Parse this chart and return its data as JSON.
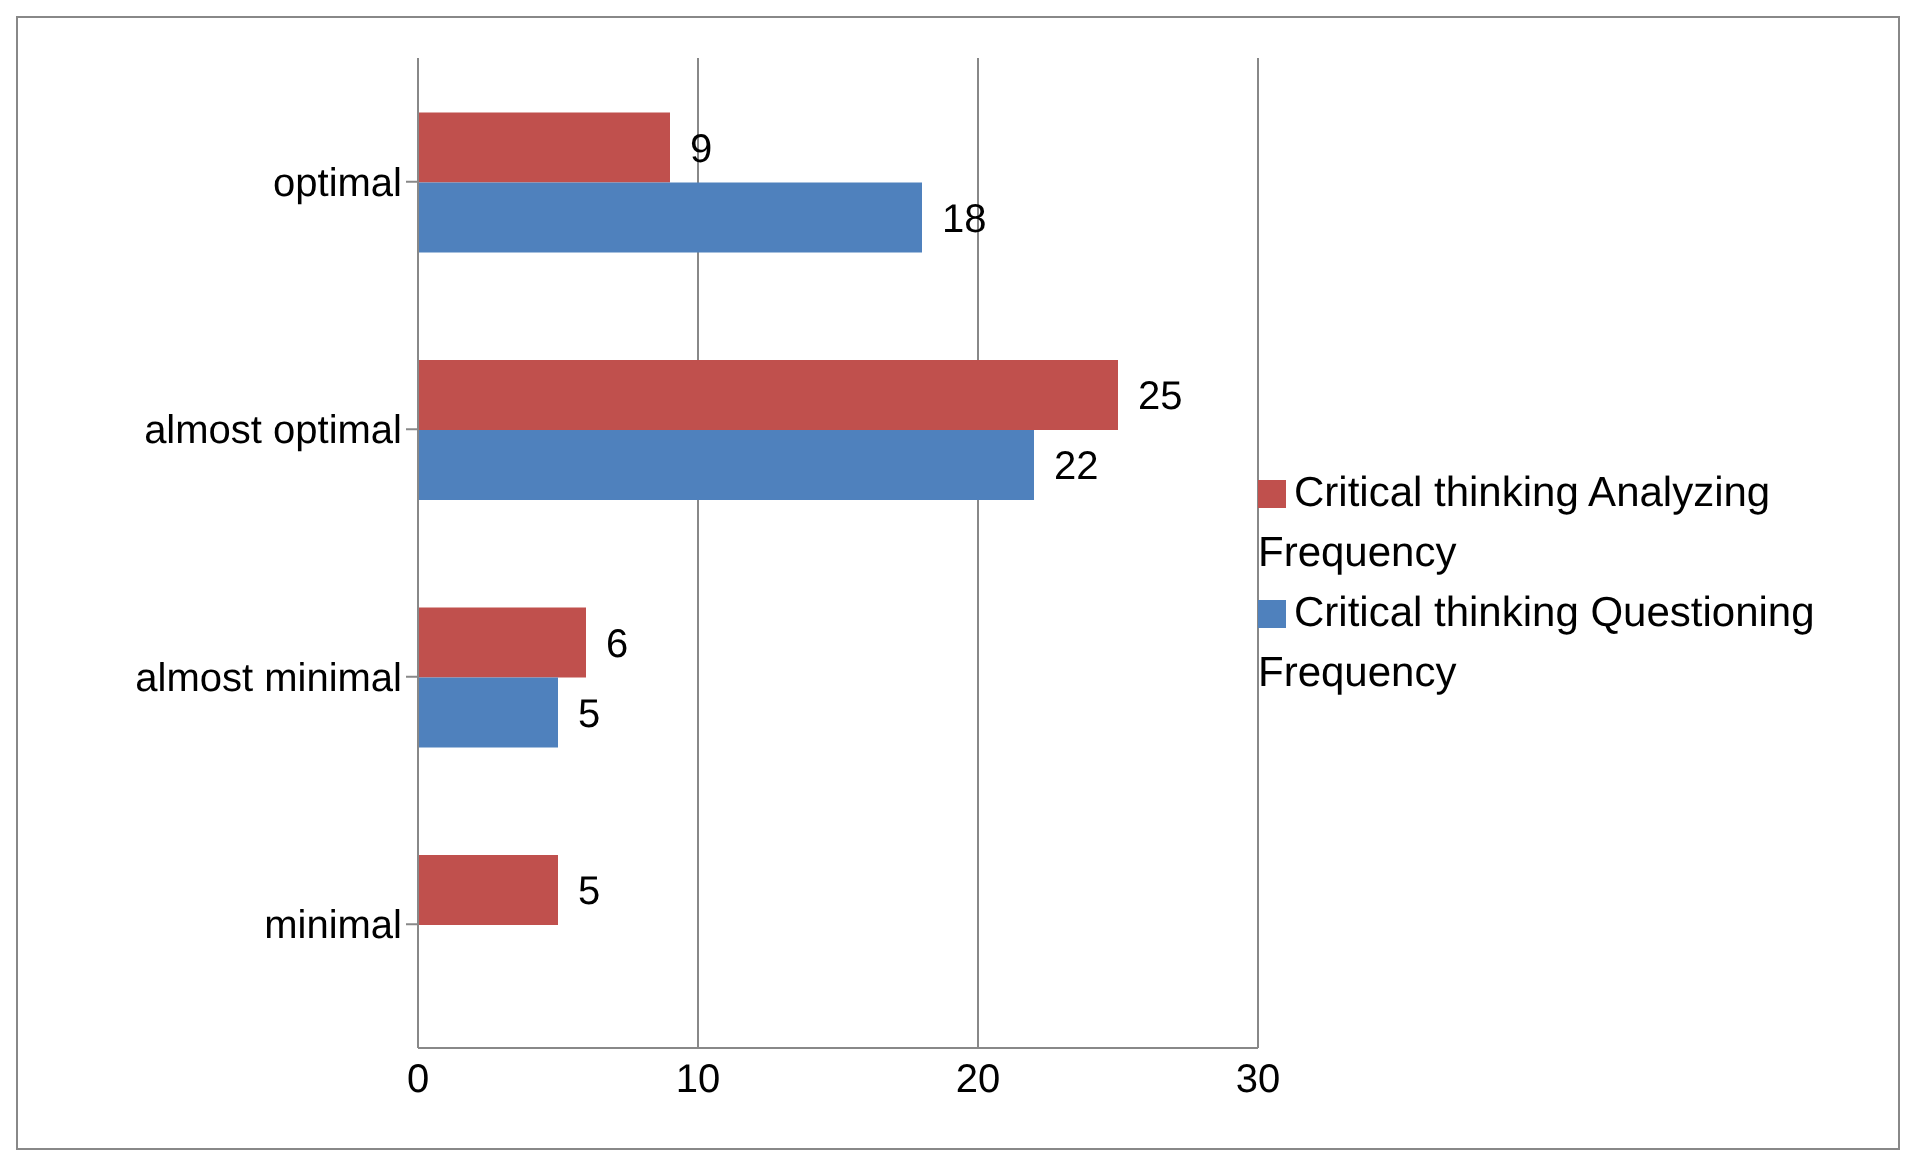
{
  "chart_data": {
    "type": "bar",
    "orientation": "horizontal",
    "categories": [
      "optimal",
      "almost optimal",
      "almost minimal",
      "minimal"
    ],
    "series": [
      {
        "name": "Critical thinking Analyzing Frequency",
        "color": "#c0504d",
        "values": [
          9,
          25,
          6,
          5
        ]
      },
      {
        "name": "Critical thinking Questioning Frequency",
        "color": "#4f81bd",
        "values": [
          18,
          22,
          5,
          null
        ]
      }
    ],
    "xlim": [
      0,
      30
    ],
    "xticks": [
      0,
      10,
      20,
      30
    ],
    "grid": "x",
    "legend": "right",
    "data_labels": true
  }
}
